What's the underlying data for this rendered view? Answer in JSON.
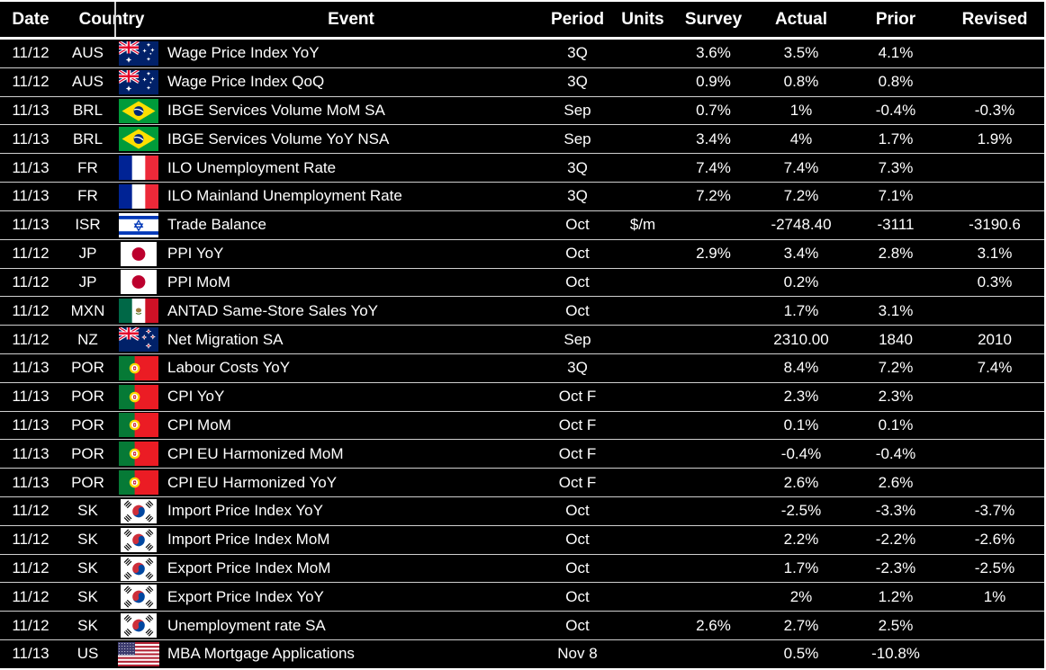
{
  "table": {
    "header": {
      "date": "Date",
      "country": "Country",
      "event": "Event",
      "period": "Period",
      "units": "Units",
      "survey": "Survey",
      "actual": "Actual",
      "prior": "Prior",
      "revised": "Revised"
    },
    "rows": [
      {
        "date": "11/12",
        "code": "AUS",
        "flag": "australia-flag",
        "event": "Wage Price Index YoY",
        "period": "3Q",
        "units": "",
        "survey": "3.6%",
        "actual": "3.5%",
        "prior": "4.1%",
        "revised": ""
      },
      {
        "date": "11/12",
        "code": "AUS",
        "flag": "australia-flag",
        "event": "Wage Price Index QoQ",
        "period": "3Q",
        "units": "",
        "survey": "0.9%",
        "actual": "0.8%",
        "prior": "0.8%",
        "revised": ""
      },
      {
        "date": "11/13",
        "code": "BRL",
        "flag": "brazil-flag",
        "event": "IBGE Services Volume MoM SA",
        "period": "Sep",
        "units": "",
        "survey": "0.7%",
        "actual": "1%",
        "prior": "-0.4%",
        "revised": "-0.3%"
      },
      {
        "date": "11/13",
        "code": "BRL",
        "flag": "brazil-flag",
        "event": "IBGE Services Volume YoY NSA",
        "period": "Sep",
        "units": "",
        "survey": "3.4%",
        "actual": "4%",
        "prior": "1.7%",
        "revised": "1.9%"
      },
      {
        "date": "11/13",
        "code": "FR",
        "flag": "france-flag",
        "event": "ILO Unemployment Rate",
        "period": "3Q",
        "units": "",
        "survey": "7.4%",
        "actual": "7.4%",
        "prior": "7.3%",
        "revised": ""
      },
      {
        "date": "11/13",
        "code": "FR",
        "flag": "france-flag",
        "event": "ILO Mainland Unemployment Rate",
        "period": "3Q",
        "units": "",
        "survey": "7.2%",
        "actual": "7.2%",
        "prior": "7.1%",
        "revised": ""
      },
      {
        "date": "11/13",
        "code": "ISR",
        "flag": "israel-flag",
        "event": "Trade Balance",
        "period": "Oct",
        "units": "$/m",
        "survey": "",
        "actual": "-2748.40",
        "prior": "-3111",
        "revised": "-3190.6"
      },
      {
        "date": "11/12",
        "code": "JP",
        "flag": "japan-flag",
        "event": "PPI YoY",
        "period": "Oct",
        "units": "",
        "survey": "2.9%",
        "actual": "3.4%",
        "prior": "2.8%",
        "revised": "3.1%"
      },
      {
        "date": "11/12",
        "code": "JP",
        "flag": "japan-flag",
        "event": "PPI MoM",
        "period": "Oct",
        "units": "",
        "survey": "",
        "actual": "0.2%",
        "prior": "",
        "revised": "0.3%"
      },
      {
        "date": "11/12",
        "code": "MXN",
        "flag": "mexico-flag",
        "event": "ANTAD Same-Store Sales YoY",
        "period": "Oct",
        "units": "",
        "survey": "",
        "actual": "1.7%",
        "prior": "3.1%",
        "revised": ""
      },
      {
        "date": "11/12",
        "code": "NZ",
        "flag": "new-zealand-flag",
        "event": "Net Migration SA",
        "period": "Sep",
        "units": "",
        "survey": "",
        "actual": "2310.00",
        "prior": "1840",
        "revised": "2010"
      },
      {
        "date": "11/13",
        "code": "POR",
        "flag": "portugal-flag",
        "event": "Labour Costs YoY",
        "period": "3Q",
        "units": "",
        "survey": "",
        "actual": "8.4%",
        "prior": "7.2%",
        "revised": "7.4%"
      },
      {
        "date": "11/13",
        "code": "POR",
        "flag": "portugal-flag",
        "event": "CPI YoY",
        "period": "Oct F",
        "units": "",
        "survey": "",
        "actual": "2.3%",
        "prior": "2.3%",
        "revised": ""
      },
      {
        "date": "11/13",
        "code": "POR",
        "flag": "portugal-flag",
        "event": "CPI MoM",
        "period": "Oct F",
        "units": "",
        "survey": "",
        "actual": "0.1%",
        "prior": "0.1%",
        "revised": ""
      },
      {
        "date": "11/13",
        "code": "POR",
        "flag": "portugal-flag",
        "event": "CPI EU Harmonized MoM",
        "period": "Oct F",
        "units": "",
        "survey": "",
        "actual": "-0.4%",
        "prior": "-0.4%",
        "revised": ""
      },
      {
        "date": "11/13",
        "code": "POR",
        "flag": "portugal-flag",
        "event": "CPI EU Harmonized YoY",
        "period": "Oct F",
        "units": "",
        "survey": "",
        "actual": "2.6%",
        "prior": "2.6%",
        "revised": ""
      },
      {
        "date": "11/12",
        "code": "SK",
        "flag": "south-korea-flag",
        "event": "Import Price Index YoY",
        "period": "Oct",
        "units": "",
        "survey": "",
        "actual": "-2.5%",
        "prior": "-3.3%",
        "revised": "-3.7%"
      },
      {
        "date": "11/12",
        "code": "SK",
        "flag": "south-korea-flag",
        "event": "Import Price Index MoM",
        "period": "Oct",
        "units": "",
        "survey": "",
        "actual": "2.2%",
        "prior": "-2.2%",
        "revised": "-2.6%"
      },
      {
        "date": "11/12",
        "code": "SK",
        "flag": "south-korea-flag",
        "event": "Export Price Index MoM",
        "period": "Oct",
        "units": "",
        "survey": "",
        "actual": "1.7%",
        "prior": "-2.3%",
        "revised": "-2.5%"
      },
      {
        "date": "11/12",
        "code": "SK",
        "flag": "south-korea-flag",
        "event": "Export Price Index YoY",
        "period": "Oct",
        "units": "",
        "survey": "",
        "actual": "2%",
        "prior": "1.2%",
        "revised": "1%"
      },
      {
        "date": "11/12",
        "code": "SK",
        "flag": "south-korea-flag",
        "event": "Unemployment rate SA",
        "period": "Oct",
        "units": "",
        "survey": "2.6%",
        "actual": "2.7%",
        "prior": "2.5%",
        "revised": ""
      },
      {
        "date": "11/13",
        "code": "US",
        "flag": "united-states-flag",
        "event": "MBA Mortgage Applications",
        "period": "Nov 8",
        "units": "",
        "survey": "",
        "actual": "0.5%",
        "prior": "-10.8%",
        "revised": ""
      }
    ]
  },
  "colors": {
    "background": "#000000",
    "text": "#ffffff",
    "grid_line": "#cfcfcf",
    "strong_line": "#ffffff"
  }
}
